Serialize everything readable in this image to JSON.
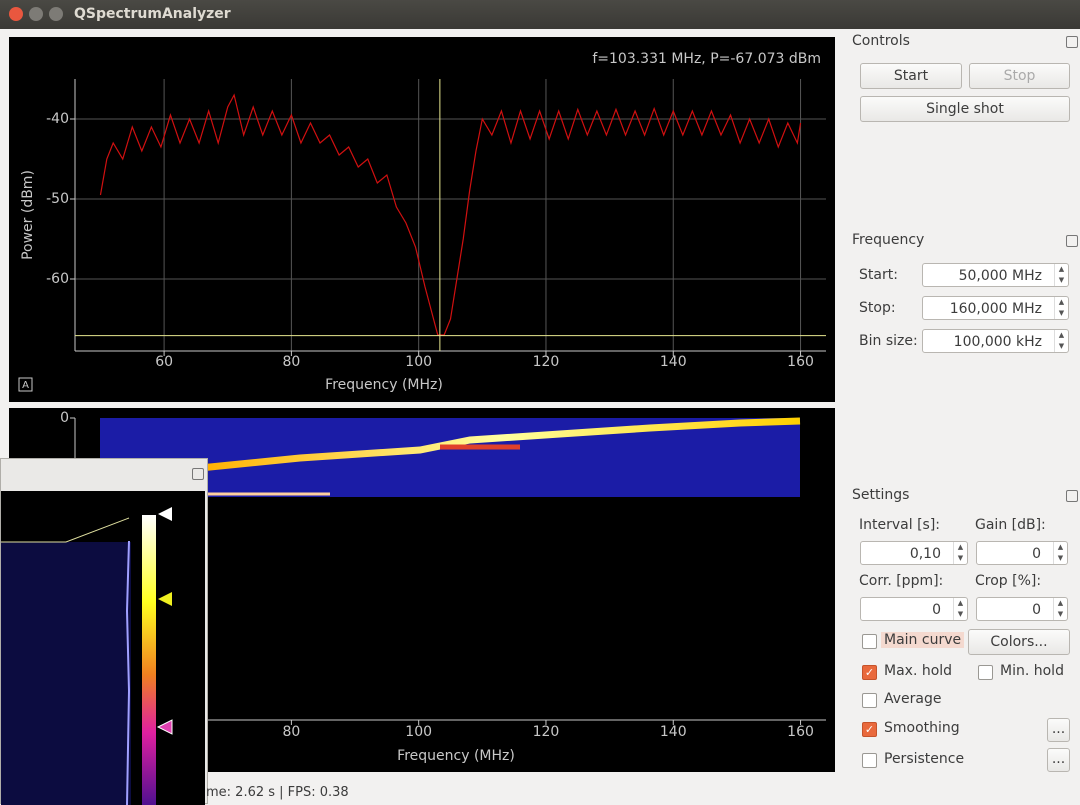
{
  "window": {
    "title": "QSpectrumAnalyzer"
  },
  "chart_data": [
    {
      "type": "line",
      "readout": "f=103.331 MHz, P=-67.073 dBm",
      "plot_button": "A",
      "x_label": "Frequency (MHz)",
      "y_label": "Power (dBm)",
      "xlim": [
        46,
        164
      ],
      "ylim": [
        -35,
        -69
      ],
      "xticks": [
        60,
        80,
        100,
        120,
        140,
        160
      ],
      "yticks": [
        -40,
        -50,
        -60
      ],
      "grid": true,
      "cursor": {
        "x": 103.331,
        "y": -67.073
      },
      "series": [
        {
          "color": "#d01010",
          "x": [
            50,
            51,
            52,
            53.5,
            55,
            56.5,
            58,
            59.5,
            61,
            62.5,
            64,
            65.5,
            67,
            68.5,
            70,
            71,
            72.5,
            74,
            75.5,
            77,
            78.5,
            80,
            81.5,
            83,
            84.5,
            86,
            87.5,
            89,
            90.5,
            92,
            93.5,
            95,
            96.5,
            98,
            99.5,
            101,
            102,
            103,
            104,
            105,
            106,
            107,
            108,
            109,
            110,
            111.5,
            113,
            114.5,
            116,
            117.5,
            119,
            120.5,
            122,
            123.5,
            125,
            126.5,
            128,
            129.5,
            131,
            132.5,
            134,
            135.5,
            137,
            138.5,
            140,
            141.5,
            143,
            144.5,
            146,
            147.5,
            149,
            150.5,
            152,
            153.5,
            155,
            156.5,
            158,
            159.5,
            160
          ],
          "values": [
            -49.5,
            -45,
            -43,
            -45,
            -41,
            -44,
            -41,
            -43.5,
            -39.5,
            -43,
            -40,
            -43,
            -39,
            -43,
            -38.5,
            -37,
            -42,
            -38.5,
            -42,
            -39,
            -42,
            -39.5,
            -43,
            -40.5,
            -43,
            -42,
            -44.5,
            -43.5,
            -46,
            -45,
            -48,
            -47,
            -51,
            -53,
            -56,
            -61,
            -64,
            -67,
            -67,
            -65,
            -60,
            -55,
            -49,
            -44,
            -40,
            -42,
            -39,
            -43,
            -39,
            -42.5,
            -39,
            -42.5,
            -39,
            -42.5,
            -38.8,
            -42,
            -39,
            -42,
            -38.8,
            -42,
            -39,
            -42,
            -38.7,
            -42,
            -39,
            -42,
            -39,
            -42,
            -39,
            -42,
            -39.5,
            -43,
            -40,
            -43,
            -40,
            -43.5,
            -40.5,
            -43,
            -40.5
          ]
        }
      ]
    },
    {
      "type": "waterfall",
      "x_label": "Frequency (MHz)",
      "xlim": [
        46,
        164
      ],
      "ylim": [
        0,
        40
      ],
      "xticks": [
        80,
        100,
        120,
        140,
        160
      ],
      "yticks": [
        0
      ]
    }
  ],
  "controls": {
    "title": "Controls",
    "start": "Start",
    "stop": "Stop",
    "single_shot": "Single shot"
  },
  "frequency": {
    "title": "Frequency",
    "fields": [
      {
        "label": "Start:",
        "value": "50,000 MHz"
      },
      {
        "label": "Stop:",
        "value": "160,000 MHz"
      },
      {
        "label": "Bin size:",
        "value": "100,000 kHz"
      }
    ]
  },
  "settings": {
    "title": "Settings",
    "fields": [
      {
        "label": "Interval [s]:",
        "value": "0,10"
      },
      {
        "label": "Gain [dB]:",
        "value": "0"
      },
      {
        "label": "Corr. [ppm]:",
        "value": "0"
      },
      {
        "label": "Crop [%]:",
        "value": "0"
      }
    ],
    "checks": [
      {
        "label": "Main curve",
        "checked": false
      },
      {
        "label": "Max. hold",
        "checked": true
      },
      {
        "label": "Min. hold",
        "checked": false
      },
      {
        "label": "Average",
        "checked": false
      },
      {
        "label": "Smoothing",
        "checked": true
      },
      {
        "label": "Persistence",
        "checked": false
      }
    ],
    "colors_button": "Colors...",
    "more_button": "..."
  },
  "status": "me: 2.62 s | FPS: 0.38"
}
